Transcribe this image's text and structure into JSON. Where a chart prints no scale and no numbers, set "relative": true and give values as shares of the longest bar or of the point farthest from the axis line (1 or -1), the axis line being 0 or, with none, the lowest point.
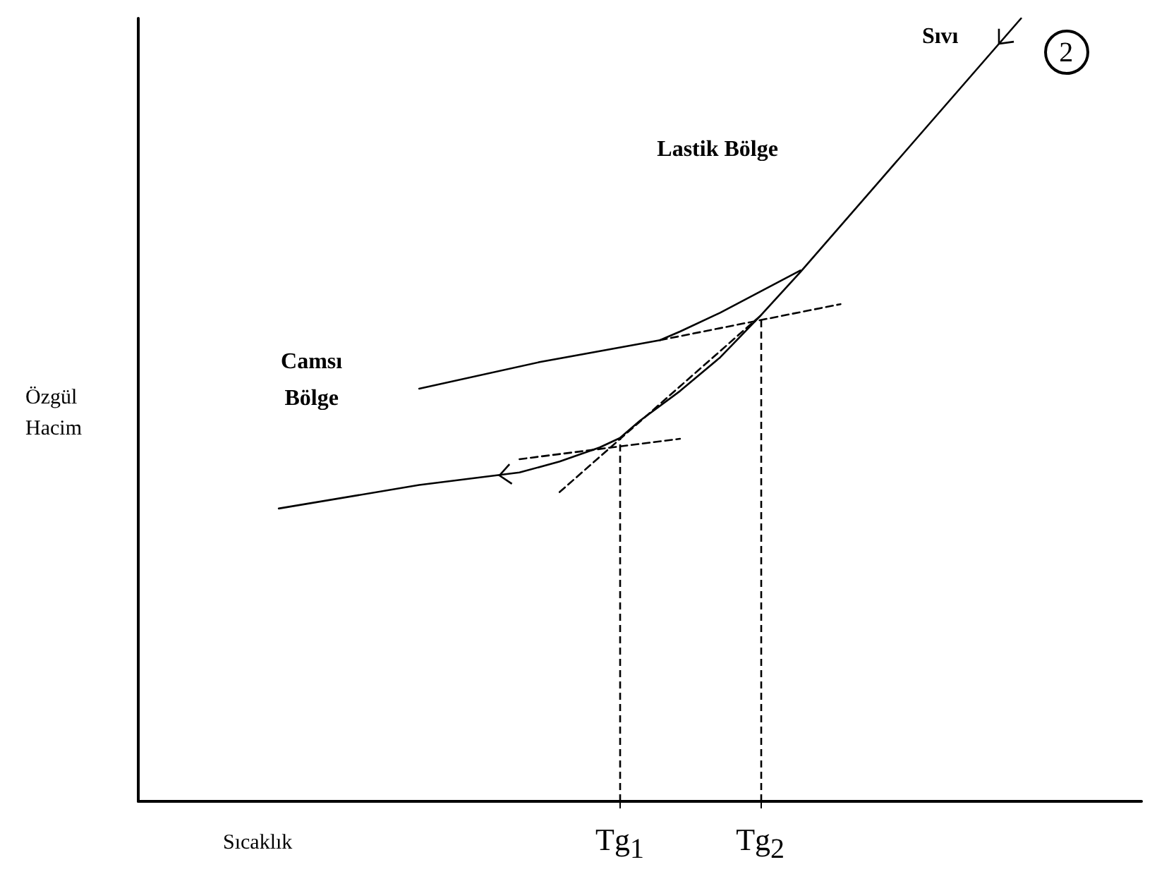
{
  "chart_data": {
    "type": "line",
    "relative": true,
    "ylabel": "Özgül\nHacim",
    "xlabel": "Sıcaklık",
    "marker": "none",
    "grid": false,
    "categories": [
      null,
      null,
      null,
      null,
      null,
      null,
      null,
      null,
      null,
      null,
      null,
      null,
      null,
      null,
      null,
      null,
      null,
      null,
      null,
      null,
      null,
      null,
      null,
      null,
      "Tg$_{1}$",
      null,
      null,
      null,
      null,
      null,
      null,
      "Tg$_{2}$",
      null,
      null,
      null,
      null,
      null,
      null,
      null,
      null,
      null,
      null,
      null,
      null,
      null,
      null,
      null,
      null,
      null,
      null,
      null
    ],
    "series": [
      {
        "color": "#000000",
        "line_style": "solid",
        "values": [
          null,
          null,
          null,
          null,
          null,
          null,
          null,
          0.374,
          null,
          null,
          null,
          null,
          null,
          null,
          0.404,
          null,
          null,
          null,
          null,
          0.42,
          null,
          0.434,
          null,
          0.452,
          0.464,
          0.486,
          null,
          0.524,
          null,
          0.567,
          null,
          0.62,
          null,
          0.676,
          null,
          null,
          null,
          null,
          null,
          null,
          null,
          null,
          null,
          null,
          1.0,
          null,
          null,
          null,
          null,
          null,
          null
        ]
      },
      {
        "color": "#000000",
        "line_style": "solid",
        "values": [
          null,
          null,
          null,
          null,
          null,
          null,
          null,
          null,
          null,
          null,
          null,
          null,
          null,
          null,
          0.527,
          null,
          null,
          null,
          null,
          null,
          0.561,
          null,
          null,
          null,
          null,
          null,
          0.589,
          0.6,
          null,
          0.624,
          null,
          0.651,
          null,
          0.678,
          null,
          null,
          null,
          null,
          null,
          null,
          null,
          null,
          null,
          null,
          null,
          null,
          null,
          null,
          null,
          null,
          null
        ]
      },
      {
        "color": "#000000",
        "line_style": "dashed",
        "values": [
          null,
          null,
          null,
          null,
          null,
          null,
          null,
          null,
          null,
          null,
          null,
          null,
          null,
          null,
          null,
          null,
          null,
          null,
          null,
          null,
          null,
          null,
          null,
          null,
          null,
          null,
          0.589,
          null,
          null,
          null,
          null,
          null,
          null,
          null,
          null,
          0.635,
          null,
          null,
          null,
          null,
          null,
          null,
          null,
          null,
          null,
          null,
          null,
          null,
          null,
          null,
          null
        ]
      },
      {
        "color": "#000000",
        "line_style": "dashed",
        "values": [
          null,
          null,
          null,
          null,
          null,
          null,
          null,
          null,
          null,
          null,
          null,
          null,
          null,
          null,
          null,
          null,
          null,
          null,
          null,
          null,
          null,
          0.395,
          null,
          null,
          null,
          null,
          null,
          null,
          null,
          null,
          null,
          0.62,
          null,
          null,
          null,
          null,
          null,
          null,
          null,
          null,
          null,
          null,
          null,
          null,
          null,
          null,
          null,
          null,
          null,
          null,
          null
        ]
      },
      {
        "color": "#000000",
        "line_style": "dashed",
        "values": [
          null,
          null,
          null,
          null,
          null,
          null,
          null,
          null,
          null,
          null,
          null,
          null,
          null,
          null,
          null,
          null,
          null,
          null,
          null,
          0.437,
          null,
          null,
          null,
          null,
          null,
          null,
          null,
          0.463,
          null,
          null,
          null,
          null,
          null,
          null,
          null,
          null,
          null,
          null,
          null,
          null,
          null,
          null,
          null,
          null,
          null,
          null,
          null,
          null,
          null,
          null,
          null
        ]
      }
    ],
    "ref_lines": [
      {
        "axis": "x",
        "value": "Tg$_{1}$",
        "color": "#000000",
        "line_style": "dashed"
      },
      {
        "axis": "x",
        "value": "Tg$_{2}$",
        "color": "#000000",
        "line_style": "dashed"
      }
    ],
    "annotations": [
      "Sıvı",
      "2",
      "Lastik Bölge",
      "Camsı\nBölge"
    ]
  }
}
